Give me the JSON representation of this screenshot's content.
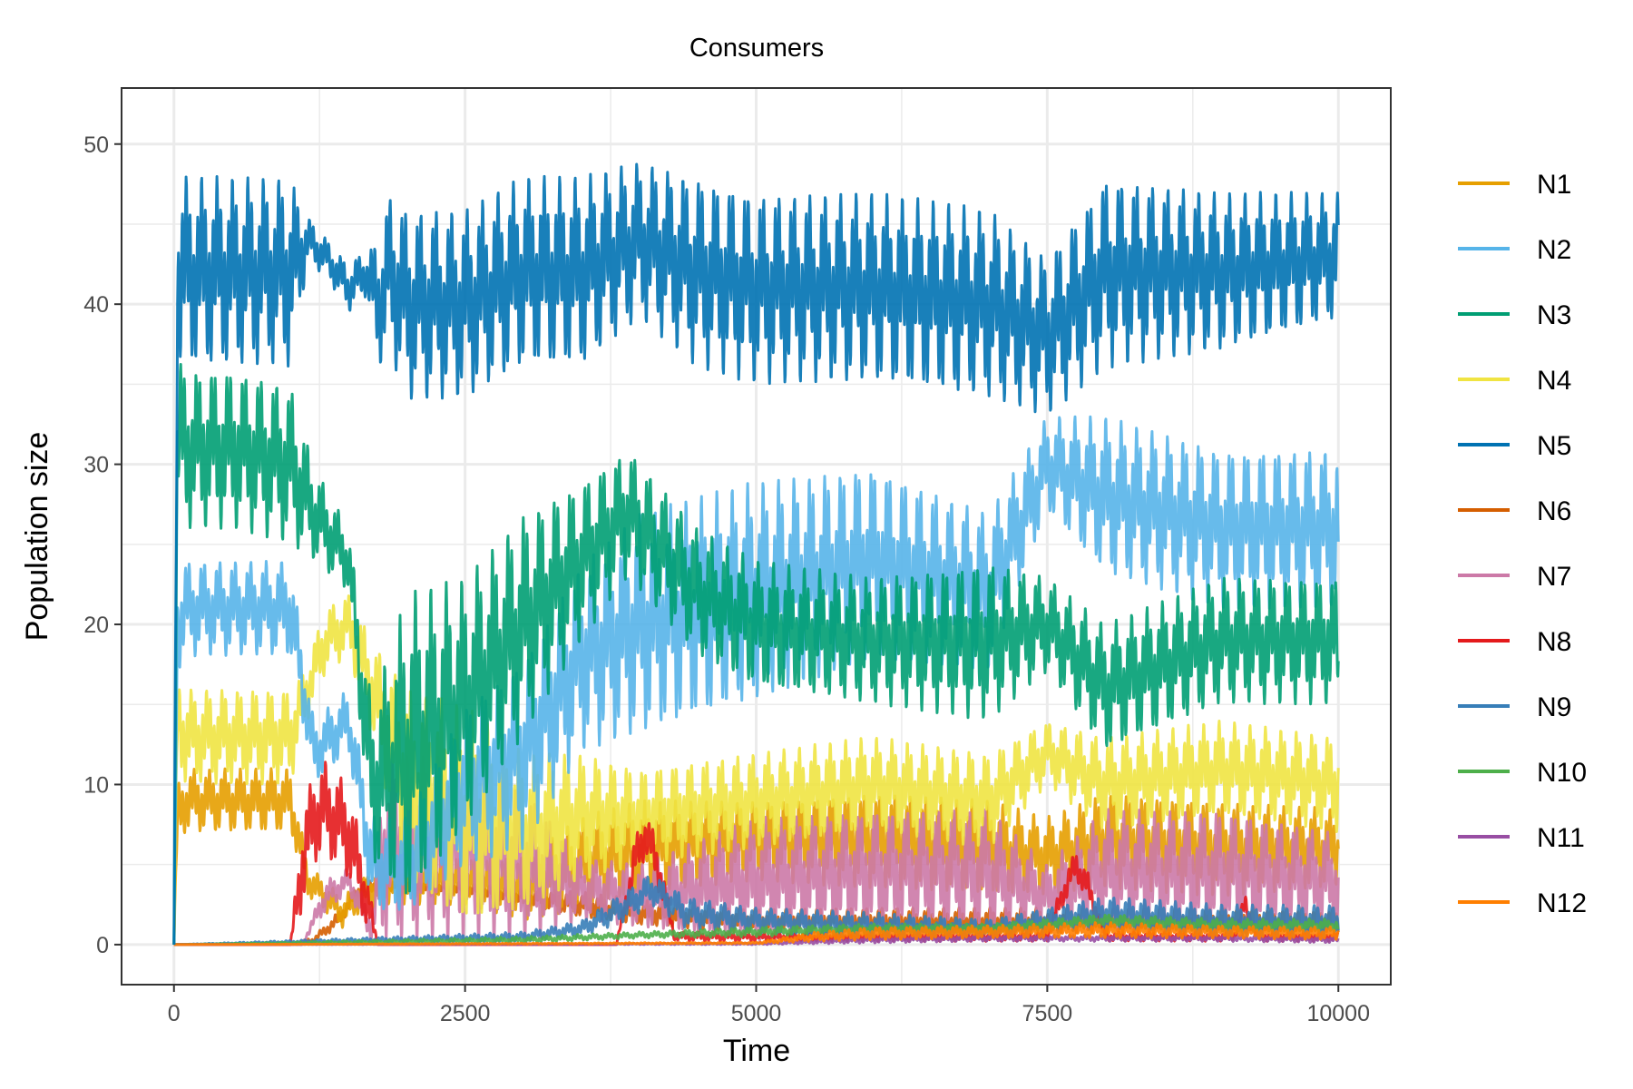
{
  "chart_data": {
    "type": "line",
    "title": "Consumers",
    "xlabel": "Time",
    "ylabel": "Population size",
    "xlim": [
      -450,
      10450
    ],
    "ylim": [
      -2.5,
      53.5
    ],
    "x_ticks": [
      0,
      2500,
      5000,
      7500,
      10000
    ],
    "x_tick_labels": [
      "0",
      "2500",
      "5000",
      "7500",
      "10000"
    ],
    "y_ticks": [
      0,
      10,
      20,
      30,
      40,
      50
    ],
    "y_tick_labels": [
      "0",
      "10",
      "20",
      "30",
      "40",
      "50"
    ],
    "grid": true,
    "legend_position": "right",
    "series": [
      {
        "name": "N1",
        "color": "#E69F00",
        "x": [
          0,
          30,
          100,
          500,
          1000,
          1150,
          1300,
          1450,
          1600,
          1800,
          2500,
          3000,
          3500,
          4000,
          5000,
          6000,
          7000,
          7500,
          8000,
          9000,
          10000
        ],
        "y": [
          0,
          8,
          9,
          9,
          9,
          4,
          3,
          2,
          3,
          4,
          4,
          3.5,
          5,
          6,
          6.5,
          6.5,
          6,
          5.5,
          6.5,
          6,
          6
        ],
        "amp": [
          0,
          2,
          2,
          2,
          2,
          1,
          1,
          1,
          1,
          1.5,
          1.5,
          2,
          3,
          3,
          2.5,
          3,
          3,
          2.5,
          3,
          3,
          2.5
        ]
      },
      {
        "name": "N2",
        "color": "#56B4E9",
        "x": [
          0,
          30,
          100,
          500,
          1000,
          1200,
          1500,
          1700,
          2000,
          2500,
          3000,
          3500,
          4000,
          5000,
          6000,
          7000,
          7500,
          8000,
          9000,
          10000
        ],
        "y": [
          0,
          20,
          21,
          21,
          21,
          12,
          14,
          5,
          5,
          10,
          12,
          18,
          20,
          22,
          24,
          22,
          30,
          28,
          26,
          26
        ],
        "amp": [
          0,
          3,
          3,
          3,
          3,
          2,
          2,
          3,
          3,
          5,
          6,
          6,
          7,
          7,
          6,
          5,
          3,
          5,
          5,
          5
        ]
      },
      {
        "name": "N3",
        "color": "#009E73",
        "x": [
          0,
          30,
          100,
          500,
          1000,
          1200,
          1500,
          1700,
          2000,
          2500,
          3000,
          3500,
          3900,
          4500,
          5000,
          6000,
          7000,
          7500,
          8000,
          9000,
          10000
        ],
        "y": [
          0,
          32,
          31,
          31,
          30,
          27,
          24,
          10,
          12,
          15,
          20,
          24,
          27,
          22,
          20,
          19,
          19,
          20,
          16,
          19,
          19
        ],
        "amp": [
          0,
          5,
          5,
          5,
          5,
          3,
          2,
          5,
          10,
          8,
          7,
          5,
          4,
          4,
          4,
          4,
          5,
          3,
          4,
          4,
          4
        ]
      },
      {
        "name": "N4",
        "color": "#F0E442",
        "x": [
          0,
          30,
          100,
          500,
          1000,
          1100,
          1300,
          1500,
          1700,
          2000,
          2500,
          3000,
          3500,
          4000,
          5000,
          6000,
          7000,
          7500,
          8000,
          9000,
          10000
        ],
        "y": [
          0,
          14,
          13,
          13,
          13,
          15,
          19,
          20,
          16,
          10,
          8,
          7,
          8,
          8,
          9,
          10,
          9,
          12,
          10,
          11,
          10
        ],
        "amp": [
          0,
          3,
          3,
          3,
          3,
          2,
          2,
          2,
          3,
          6,
          7,
          5,
          4,
          3,
          3,
          3,
          3,
          2,
          3,
          3,
          3
        ]
      },
      {
        "name": "N5",
        "color": "#0072B2",
        "x": [
          0,
          30,
          100,
          500,
          1000,
          1150,
          1300,
          1500,
          1650,
          1750,
          1850,
          2000,
          2500,
          3000,
          3500,
          4000,
          4500,
          5000,
          6000,
          7000,
          7500,
          8000,
          9000,
          10000
        ],
        "y": [
          0,
          42,
          42,
          42,
          42,
          44,
          43,
          41,
          42,
          40,
          42,
          40,
          40,
          42,
          42,
          44,
          42,
          41,
          41,
          40,
          38,
          42,
          42,
          43
        ],
        "amp": [
          0,
          6,
          6,
          6,
          6,
          1.5,
          1.2,
          1.5,
          1.5,
          4,
          5,
          6,
          6,
          6,
          6,
          5,
          6,
          6,
          6,
          6,
          5,
          6,
          5,
          4
        ]
      },
      {
        "name": "N6",
        "color": "#D55E00",
        "x": [
          0,
          1000,
          1200,
          1400,
          1600,
          1800,
          2500,
          3000,
          3500,
          4000,
          5000,
          6000,
          7000,
          8000,
          9000,
          10000
        ],
        "y": [
          0,
          0,
          0.3,
          1.5,
          3.5,
          3.8,
          3.5,
          3,
          2.5,
          2,
          1.5,
          1.5,
          1.5,
          1.5,
          1.5,
          1.5
        ],
        "amp": [
          0,
          0,
          0.2,
          0.5,
          0.5,
          0.4,
          0.4,
          0.5,
          0.8,
          0.8,
          0.8,
          0.8,
          0.8,
          0.8,
          0.8,
          0.8
        ]
      },
      {
        "name": "N7",
        "color": "#CC79A7",
        "x": [
          0,
          1100,
          1300,
          1500,
          1700,
          1800,
          2500,
          3000,
          3500,
          4000,
          5000,
          6000,
          7000,
          7500,
          8000,
          9000,
          10000
        ],
        "y": [
          0,
          0,
          3,
          4,
          1,
          6,
          6,
          5,
          3.5,
          3,
          4,
          4.5,
          4.5,
          3,
          4.5,
          4.5,
          4
        ],
        "amp": [
          0,
          0,
          1,
          0.8,
          1,
          6,
          6,
          5,
          2,
          2,
          4,
          4,
          4,
          2,
          4,
          4,
          3
        ]
      },
      {
        "name": "N8",
        "color": "#E41A1C",
        "x": [
          0,
          1000,
          1100,
          1200,
          1300,
          1500,
          1650,
          1750,
          3800,
          3950,
          4050,
          4150,
          4300,
          7500,
          7650,
          7750,
          7850,
          8000,
          9100,
          9200,
          9300,
          10000
        ],
        "y": [
          0,
          0,
          5,
          8,
          8.5,
          7,
          3,
          0,
          0,
          5,
          7,
          5,
          0.5,
          0.5,
          3.5,
          5,
          3.5,
          0.5,
          0.5,
          2.5,
          0.5,
          0.5
        ],
        "amp": [
          0,
          0,
          3,
          3,
          3,
          3,
          2,
          0,
          0,
          1.5,
          1.5,
          1.5,
          0.3,
          0.3,
          1,
          1,
          1,
          0.3,
          0.3,
          0.7,
          0.3,
          0.3
        ]
      },
      {
        "name": "N9",
        "color": "#377EB8",
        "x": [
          0,
          3000,
          3500,
          3900,
          4100,
          4400,
          5000,
          6000,
          7000,
          7500,
          8000,
          9000,
          10000
        ],
        "y": [
          0,
          0.5,
          1,
          2.5,
          3.5,
          2,
          1.5,
          1.2,
          1,
          1.5,
          2,
          1.5,
          1.5
        ],
        "amp": [
          0,
          0.3,
          0.5,
          1,
          1,
          1,
          0.8,
          0.8,
          0.6,
          0.8,
          1,
          1,
          1
        ]
      },
      {
        "name": "N10",
        "color": "#4DAF4A",
        "x": [
          0,
          3000,
          4000,
          5000,
          6000,
          7000,
          8000,
          9000,
          10000
        ],
        "y": [
          0,
          0.3,
          0.6,
          0.8,
          1,
          1,
          1.5,
          1.2,
          1.2
        ],
        "amp": [
          0,
          0.2,
          0.2,
          0.3,
          0.3,
          0.3,
          0.4,
          0.4,
          0.4
        ]
      },
      {
        "name": "N11",
        "color": "#984EA3",
        "x": [
          0,
          5000,
          6000,
          7000,
          8000,
          9000,
          10000
        ],
        "y": [
          0,
          0.05,
          0.3,
          0.4,
          0.4,
          0.4,
          0.3
        ],
        "amp": [
          0,
          0.05,
          0.2,
          0.2,
          0.2,
          0.2,
          0.2
        ]
      },
      {
        "name": "N12",
        "color": "#FF7F00",
        "x": [
          0,
          5000,
          5500,
          6000,
          7000,
          8000,
          9000,
          10000
        ],
        "y": [
          0,
          0.1,
          0.5,
          0.7,
          0.8,
          0.9,
          0.8,
          0.7
        ],
        "amp": [
          0,
          0.05,
          0.3,
          0.4,
          0.4,
          0.5,
          0.4,
          0.4
        ]
      }
    ]
  }
}
